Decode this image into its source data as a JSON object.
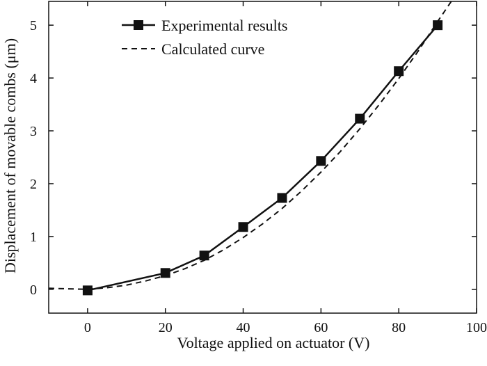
{
  "chart_data": {
    "type": "line",
    "xlabel": "Voltage applied on actuator (V)",
    "ylabel": "Displacement of movable combs (μm)",
    "xlim": [
      -10,
      100
    ],
    "ylim": [
      -0.45,
      5.45
    ],
    "xticks": [
      0,
      20,
      40,
      60,
      80,
      100
    ],
    "yticks": [
      0,
      1,
      2,
      3,
      4,
      5
    ],
    "x_tick_labels": [
      "0",
      "20",
      "40",
      "60",
      "80",
      "100"
    ],
    "y_tick_labels": [
      "0",
      "1",
      "2",
      "3",
      "4",
      "5"
    ],
    "grid": false,
    "legend_position": "top-left",
    "series": [
      {
        "name": "Experimental results",
        "style": "solid-line-square-markers",
        "color": "#111111",
        "x": [
          0,
          20,
          30,
          40,
          50,
          60,
          70,
          80,
          90
        ],
        "y": [
          -0.02,
          0.31,
          0.64,
          1.18,
          1.73,
          2.43,
          3.23,
          4.13,
          5.0
        ]
      },
      {
        "name": "Calculated curve",
        "style": "dashed-line",
        "color": "#111111",
        "x": [
          -10,
          -5,
          0,
          5,
          10,
          15,
          20,
          25,
          30,
          35,
          40,
          45,
          50,
          55,
          60,
          65,
          70,
          75,
          80,
          85,
          90,
          93.5
        ],
        "y": [
          0.02,
          0.01,
          0.0,
          0.03,
          0.08,
          0.16,
          0.26,
          0.39,
          0.55,
          0.75,
          0.98,
          1.24,
          1.53,
          1.86,
          2.22,
          2.61,
          3.04,
          3.5,
          3.99,
          4.51,
          5.07,
          5.45
        ]
      }
    ]
  }
}
